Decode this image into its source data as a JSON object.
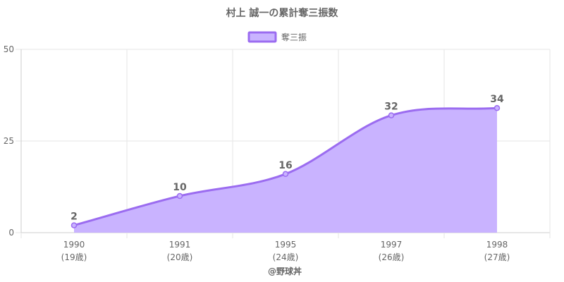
{
  "chart_data": {
    "type": "area",
    "title": "村上 誠一の累計奪三振数",
    "series": [
      {
        "name": "奪三振",
        "values": [
          2,
          10,
          16,
          32,
          34
        ]
      }
    ],
    "categories": [
      [
        "1990",
        "(19歳)"
      ],
      [
        "1991",
        "(20歳)"
      ],
      [
        "1995",
        "(24歳)"
      ],
      [
        "1997",
        "(26歳)"
      ],
      [
        "1998",
        "(27歳)"
      ]
    ],
    "ylim": [
      0,
      50
    ],
    "yticks": [
      0,
      25,
      50
    ],
    "grid": true,
    "legend": "top-center",
    "data_labels": true,
    "credit": "@野球丼",
    "colors": {
      "fill": "#c9b3ff",
      "line": "#9b6cf0",
      "grid": "#e6e6e6",
      "axis": "#cccccc",
      "text": "#666666"
    }
  }
}
